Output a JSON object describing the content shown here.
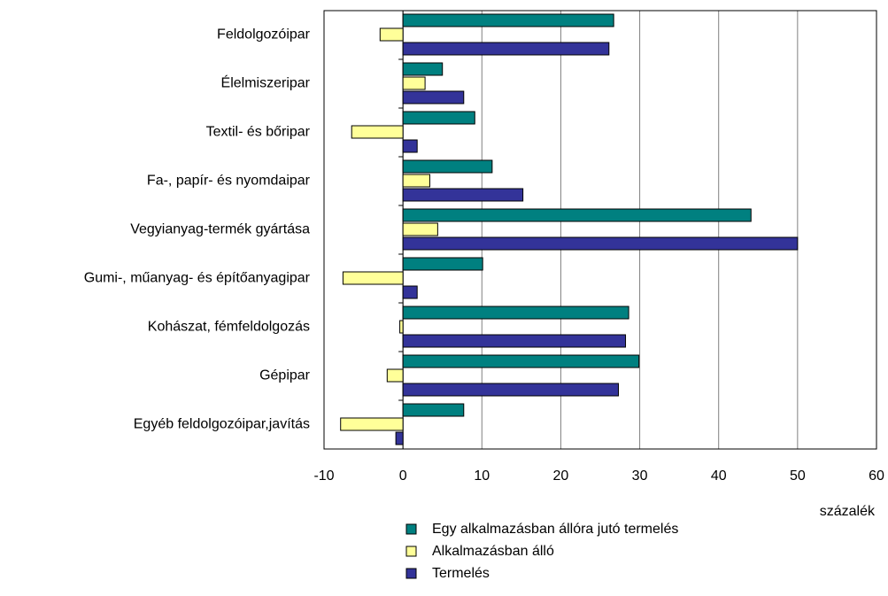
{
  "chart_data": {
    "type": "hbar",
    "categories": [
      "Feldolgozóipar",
      "Élelmiszeripar",
      "Textil- és bőripar",
      "Fa-, papír- és nyomdaipar",
      "Vegyianyag-termék gyártása",
      "Gumi-, műanyag- és építőanyagipar",
      "Kohászat, fémfeldolgozás",
      "Gépipar",
      "Egyéb feldolgozóipar,javítás"
    ],
    "series": [
      {
        "name": "Egy alkalmazásban állóra jutó termelés",
        "color": "#008080",
        "values": [
          26.7,
          5.0,
          9.1,
          11.3,
          44.1,
          10.1,
          28.6,
          29.9,
          7.7
        ]
      },
      {
        "name": "Alkalmazásban álló",
        "color": "#ffff99",
        "values": [
          -2.9,
          2.8,
          -6.5,
          3.4,
          4.4,
          -7.6,
          -0.4,
          -2.0,
          -7.9
        ]
      },
      {
        "name": "Termelés",
        "color": "#333399",
        "values": [
          26.1,
          7.7,
          1.8,
          15.2,
          50,
          1.8,
          28.2,
          27.3,
          -0.9
        ]
      }
    ],
    "xlabel": "százalék",
    "xlim": [
      -10,
      60
    ],
    "xticks": [
      -10,
      0,
      10,
      20,
      30,
      40,
      50,
      60
    ],
    "grid": true,
    "legend": "bottom"
  }
}
